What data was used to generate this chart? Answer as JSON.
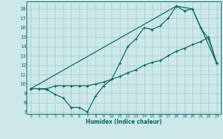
{
  "xlabel": "Humidex (Indice chaleur)",
  "bg_color": "#cce8e8",
  "grid_color": "#b0d0d0",
  "line_color": "#006666",
  "xlim": [
    -0.5,
    23.5
  ],
  "ylim": [
    6.8,
    18.8
  ],
  "xticks": [
    0,
    1,
    2,
    3,
    4,
    5,
    6,
    7,
    8,
    9,
    10,
    11,
    12,
    13,
    14,
    15,
    16,
    17,
    18,
    19,
    20,
    21,
    22,
    23
  ],
  "yticks": [
    7,
    8,
    9,
    10,
    11,
    12,
    13,
    14,
    15,
    16,
    17,
    18
  ],
  "line1_x": [
    0,
    1,
    2,
    3,
    4,
    5,
    6,
    7,
    8,
    9,
    10,
    11,
    12,
    13,
    14,
    15,
    16,
    17,
    18,
    19,
    20,
    21,
    22,
    23
  ],
  "line1_y": [
    9.5,
    9.5,
    9.4,
    8.9,
    8.5,
    7.5,
    7.5,
    7.0,
    8.7,
    9.8,
    10.5,
    12.2,
    14.0,
    14.8,
    16.0,
    15.8,
    16.2,
    17.0,
    18.3,
    17.8,
    18.0,
    16.0,
    14.8,
    12.2
  ],
  "line2_x": [
    0,
    1,
    2,
    3,
    4,
    5,
    6,
    7,
    8,
    9,
    10,
    11,
    12,
    13,
    14,
    15,
    16,
    17,
    18,
    19,
    20,
    21,
    22,
    23
  ],
  "line2_y": [
    9.5,
    9.5,
    9.5,
    9.8,
    9.8,
    9.8,
    9.8,
    9.8,
    10.0,
    10.2,
    10.5,
    10.8,
    11.2,
    11.5,
    12.0,
    12.3,
    12.5,
    13.0,
    13.5,
    13.8,
    14.2,
    14.5,
    15.0,
    12.2
  ],
  "line3_x": [
    0,
    18,
    20,
    23
  ],
  "line3_y": [
    9.5,
    18.3,
    18.0,
    12.2
  ]
}
